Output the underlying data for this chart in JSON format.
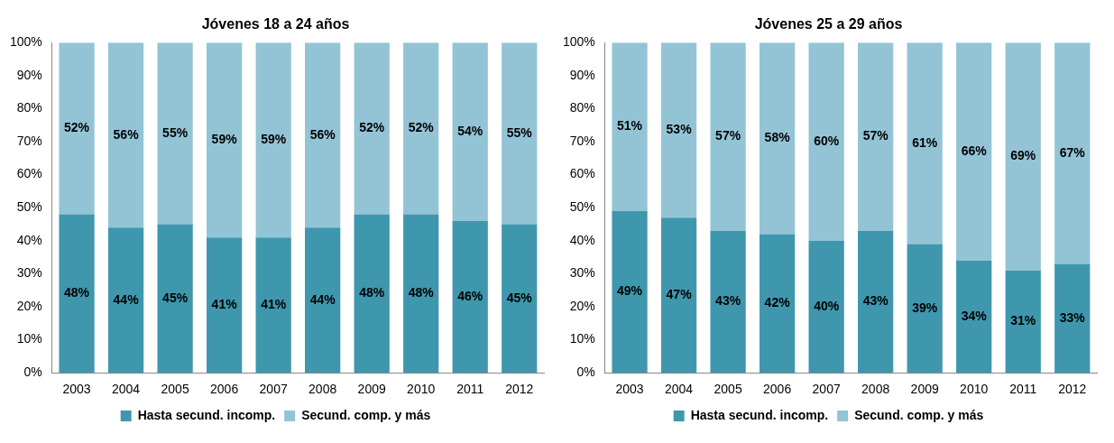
{
  "chart_data": [
    {
      "type": "bar",
      "title": "Jóvenes 18 a 24 años",
      "categories": [
        "2003",
        "2004",
        "2005",
        "2006",
        "2007",
        "2008",
        "2009",
        "2010",
        "2011",
        "2012"
      ],
      "stacked": true,
      "legend": "bottom",
      "ylim": [
        0,
        100
      ],
      "yticks": [
        {
          "value": 0,
          "label": "0%"
        },
        {
          "value": 10,
          "label": "10%"
        },
        {
          "value": 20,
          "label": "20%"
        },
        {
          "value": 30,
          "label": "30%"
        },
        {
          "value": 40,
          "label": "40%"
        },
        {
          "value": 50,
          "label": "50%"
        },
        {
          "value": 60,
          "label": "60%"
        },
        {
          "value": 70,
          "label": "70%"
        },
        {
          "value": 80,
          "label": "80%"
        },
        {
          "value": 90,
          "label": "90%"
        },
        {
          "value": 100,
          "label": "100%"
        }
      ],
      "series": [
        {
          "name": "Hasta secund. incomp.",
          "color": "#3f97ae",
          "values": [
            48,
            44,
            45,
            41,
            41,
            44,
            48,
            48,
            46,
            45
          ],
          "value_labels": [
            "48%",
            "44%",
            "45%",
            "41%",
            "41%",
            "44%",
            "48%",
            "48%",
            "46%",
            "45%"
          ]
        },
        {
          "name": "Secund. comp. y más",
          "color": "#93c4d6",
          "values": [
            52,
            56,
            55,
            59,
            59,
            56,
            52,
            52,
            54,
            55
          ],
          "value_labels": [
            "52%",
            "56%",
            "55%",
            "59%",
            "59%",
            "56%",
            "52%",
            "52%",
            "54%",
            "55%"
          ]
        }
      ]
    },
    {
      "type": "bar",
      "title": "Jóvenes 25 a 29 años",
      "categories": [
        "2003",
        "2004",
        "2005",
        "2006",
        "2007",
        "2008",
        "2009",
        "2010",
        "2011",
        "2012"
      ],
      "stacked": true,
      "legend": "bottom",
      "ylim": [
        0,
        100
      ],
      "yticks": [
        {
          "value": 0,
          "label": "0%"
        },
        {
          "value": 10,
          "label": "10%"
        },
        {
          "value": 20,
          "label": "20%"
        },
        {
          "value": 30,
          "label": "30%"
        },
        {
          "value": 40,
          "label": "40%"
        },
        {
          "value": 50,
          "label": "50%"
        },
        {
          "value": 60,
          "label": "60%"
        },
        {
          "value": 70,
          "label": "70%"
        },
        {
          "value": 80,
          "label": "80%"
        },
        {
          "value": 90,
          "label": "90%"
        },
        {
          "value": 100,
          "label": "100%"
        }
      ],
      "series": [
        {
          "name": "Hasta secund. incomp.",
          "color": "#3f97ae",
          "values": [
            49,
            47,
            43,
            42,
            40,
            43,
            39,
            34,
            31,
            33
          ],
          "value_labels": [
            "49%",
            "47%",
            "43%",
            "42%",
            "40%",
            "43%",
            "39%",
            "34%",
            "31%",
            "33%"
          ]
        },
        {
          "name": "Secund. comp. y más",
          "color": "#93c4d6",
          "values": [
            51,
            53,
            57,
            58,
            60,
            57,
            61,
            66,
            69,
            67
          ],
          "value_labels": [
            "51%",
            "53%",
            "57%",
            "58%",
            "60%",
            "57%",
            "61%",
            "66%",
            "69%",
            "67%"
          ]
        }
      ]
    }
  ]
}
